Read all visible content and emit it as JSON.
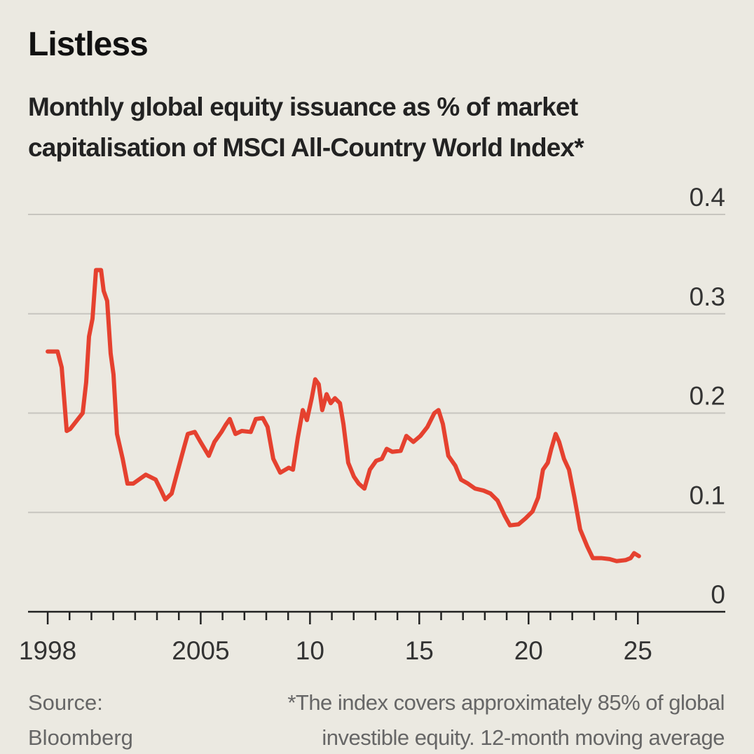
{
  "chart_data": {
    "type": "line",
    "title": "Listless",
    "subtitle": "Monthly global equity issuance as % of market capitalisation of MSCI All-Country World Index*",
    "source": "Source: Bloomberg",
    "footnote": "*The index covers approximately 85% of global investible equity. 12-month moving average",
    "x": [
      1998.0,
      1998.45,
      1998.64,
      1998.87,
      1999.03,
      1999.35,
      1999.6,
      1999.76,
      1999.89,
      2000.05,
      2000.21,
      2000.44,
      2000.56,
      2000.72,
      2000.88,
      2001.01,
      2001.17,
      2001.43,
      2001.65,
      2001.91,
      2002.23,
      2002.49,
      2002.94,
      2003.19,
      2003.38,
      2003.67,
      2003.9,
      2004.22,
      2004.41,
      2004.73,
      2004.99,
      2005.37,
      2005.63,
      2005.95,
      2006.14,
      2006.33,
      2006.59,
      2006.88,
      2007.29,
      2007.52,
      2007.84,
      2008.06,
      2008.32,
      2008.64,
      2009.03,
      2009.22,
      2009.44,
      2009.67,
      2009.86,
      2010.08,
      2010.24,
      2010.4,
      2010.56,
      2010.76,
      2010.95,
      2011.14,
      2011.37,
      2011.53,
      2011.75,
      2012.01,
      2012.23,
      2012.49,
      2012.74,
      2013.03,
      2013.29,
      2013.51,
      2013.77,
      2014.15,
      2014.41,
      2014.73,
      2015.05,
      2015.37,
      2015.69,
      2015.88,
      2016.08,
      2016.33,
      2016.65,
      2016.91,
      2017.23,
      2017.55,
      2017.94,
      2018.26,
      2018.58,
      2018.9,
      2019.15,
      2019.54,
      2019.86,
      2020.18,
      2020.44,
      2020.66,
      2020.88,
      2021.04,
      2021.24,
      2021.4,
      2021.62,
      2021.85,
      2022.1,
      2022.36,
      2022.68,
      2022.94,
      2023.32,
      2023.71,
      2024.03,
      2024.44,
      2024.67,
      2024.83,
      2025.05
    ],
    "series": [
      {
        "color": "#e5412f",
        "values": [
          0.262,
          0.262,
          0.246,
          0.182,
          0.184,
          0.193,
          0.2,
          0.231,
          0.277,
          0.295,
          0.344,
          0.344,
          0.323,
          0.313,
          0.26,
          0.239,
          0.179,
          0.154,
          0.129,
          0.129,
          0.134,
          0.138,
          0.133,
          0.122,
          0.113,
          0.119,
          0.138,
          0.164,
          0.179,
          0.181,
          0.171,
          0.157,
          0.171,
          0.181,
          0.188,
          0.194,
          0.179,
          0.182,
          0.181,
          0.194,
          0.195,
          0.186,
          0.154,
          0.14,
          0.145,
          0.143,
          0.175,
          0.203,
          0.193,
          0.215,
          0.234,
          0.229,
          0.203,
          0.219,
          0.21,
          0.215,
          0.21,
          0.189,
          0.15,
          0.136,
          0.129,
          0.124,
          0.143,
          0.152,
          0.154,
          0.164,
          0.161,
          0.162,
          0.177,
          0.171,
          0.177,
          0.186,
          0.2,
          0.203,
          0.189,
          0.157,
          0.147,
          0.133,
          0.129,
          0.124,
          0.122,
          0.119,
          0.112,
          0.097,
          0.087,
          0.088,
          0.094,
          0.101,
          0.115,
          0.143,
          0.15,
          0.164,
          0.179,
          0.171,
          0.154,
          0.143,
          0.115,
          0.083,
          0.066,
          0.054,
          0.054,
          0.053,
          0.051,
          0.052,
          0.054,
          0.059,
          0.056
        ]
      }
    ],
    "xlim": [
      1997.1,
      2029
    ],
    "xticks": [
      {
        "value": 1998,
        "label": "1998"
      },
      2005,
      {
        "value": 2010,
        "label": "10"
      },
      {
        "value": 2015,
        "label": "15"
      },
      {
        "value": 2020,
        "label": "20"
      },
      {
        "value": 2025,
        "label": "25"
      }
    ],
    "minor_xticks": [
      1999,
      2000,
      2001,
      2002,
      2003,
      2004,
      2006,
      2007,
      2008,
      2009,
      2011,
      2012,
      2013,
      2014,
      2016,
      2017,
      2018,
      2019,
      2021,
      2022,
      2023,
      2024
    ],
    "ylim": [
      0,
      0.4
    ],
    "yticks": [
      0,
      0.1,
      0.2,
      0.3,
      0.4
    ],
    "grid": true
  }
}
